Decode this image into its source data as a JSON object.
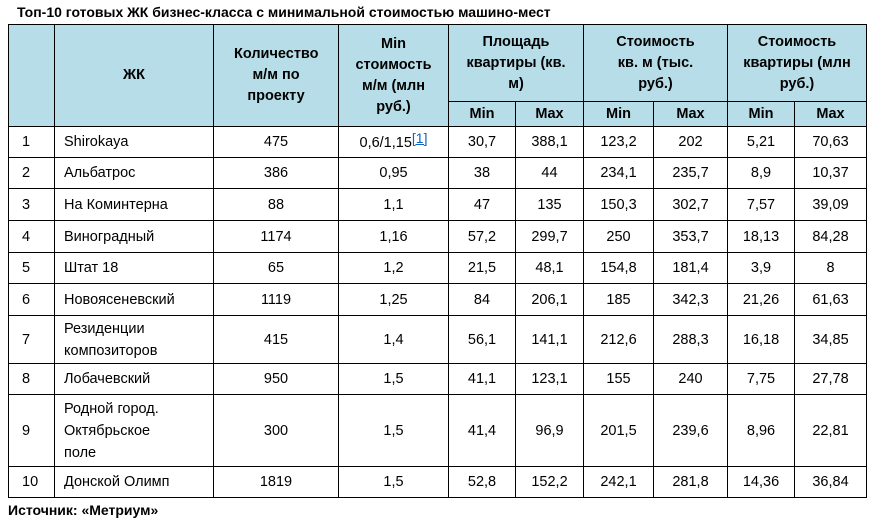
{
  "title": "Топ-10 готовых ЖК бизнес-класса с минимальной стоимостью машино-мест",
  "headers": {
    "zhk": "ЖК",
    "count": "Количество м/м по проекту",
    "min_cost": "Min стоимость м/м (млн руб.)",
    "area": "Площадь квартиры (кв. м)",
    "cost_sqm": "Стоимость кв. м (тыс. руб.)",
    "cost_apt": "Стоимость квартиры (млн руб.)",
    "min": "Min",
    "max": "Max"
  },
  "rows": [
    {
      "n": "1",
      "name": "Shirokaya",
      "count": "475",
      "mincost": "0,6/1,15",
      "footnote": "[1]",
      "area_min": "30,7",
      "area_max": "388,1",
      "sqm_min": "123,2",
      "sqm_max": "202",
      "apt_min": "5,21",
      "apt_max": "70,63"
    },
    {
      "n": "2",
      "name": "Альбатрос",
      "count": "386",
      "mincost": "0,95",
      "area_min": "38",
      "area_max": "44",
      "sqm_min": "234,1",
      "sqm_max": "235,7",
      "apt_min": "8,9",
      "apt_max": "10,37"
    },
    {
      "n": "3",
      "name": "На Коминтерна",
      "count": "88",
      "mincost": "1,1",
      "area_min": "47",
      "area_max": "135",
      "sqm_min": "150,3",
      "sqm_max": "302,7",
      "apt_min": "7,57",
      "apt_max": "39,09"
    },
    {
      "n": "4",
      "name": "Виноградный",
      "count": "1174",
      "mincost": "1,16",
      "area_min": "57,2",
      "area_max": "299,7",
      "sqm_min": "250",
      "sqm_max": "353,7",
      "apt_min": "18,13",
      "apt_max": "84,28"
    },
    {
      "n": "5",
      "name": "Штат 18",
      "count": "65",
      "mincost": "1,2",
      "area_min": "21,5",
      "area_max": "48,1",
      "sqm_min": "154,8",
      "sqm_max": "181,4",
      "apt_min": "3,9",
      "apt_max": "8"
    },
    {
      "n": "6",
      "name": "Новоясеневский",
      "count": "1119",
      "mincost": "1,25",
      "area_min": "84",
      "area_max": "206,1",
      "sqm_min": "185",
      "sqm_max": "342,3",
      "apt_min": "21,26",
      "apt_max": "61,63"
    },
    {
      "n": "7",
      "name": "Резиденции композиторов",
      "count": "415",
      "mincost": "1,4",
      "area_min": "56,1",
      "area_max": "141,1",
      "sqm_min": "212,6",
      "sqm_max": "288,3",
      "apt_min": "16,18",
      "apt_max": "34,85"
    },
    {
      "n": "8",
      "name": "Лобачевский",
      "count": "950",
      "mincost": "1,5",
      "area_min": "41,1",
      "area_max": "123,1",
      "sqm_min": "155",
      "sqm_max": "240",
      "apt_min": "7,75",
      "apt_max": "27,78"
    },
    {
      "n": "9",
      "name": "Родной город. Октябрьское поле",
      "count": "300",
      "mincost": "1,5",
      "area_min": "41,4",
      "area_max": "96,9",
      "sqm_min": "201,5",
      "sqm_max": "239,6",
      "apt_min": "8,96",
      "apt_max": "22,81"
    },
    {
      "n": "10",
      "name": "Донской Олимп",
      "count": "1819",
      "mincost": "1,5",
      "area_min": "52,8",
      "area_max": "152,2",
      "sqm_min": "242,1",
      "sqm_max": "281,8",
      "apt_min": "14,36",
      "apt_max": "36,84"
    }
  ],
  "source": "Источник: «Метриум»",
  "colors": {
    "header_bg": "#b7dee8",
    "footnote_link": "#0b63c5"
  }
}
